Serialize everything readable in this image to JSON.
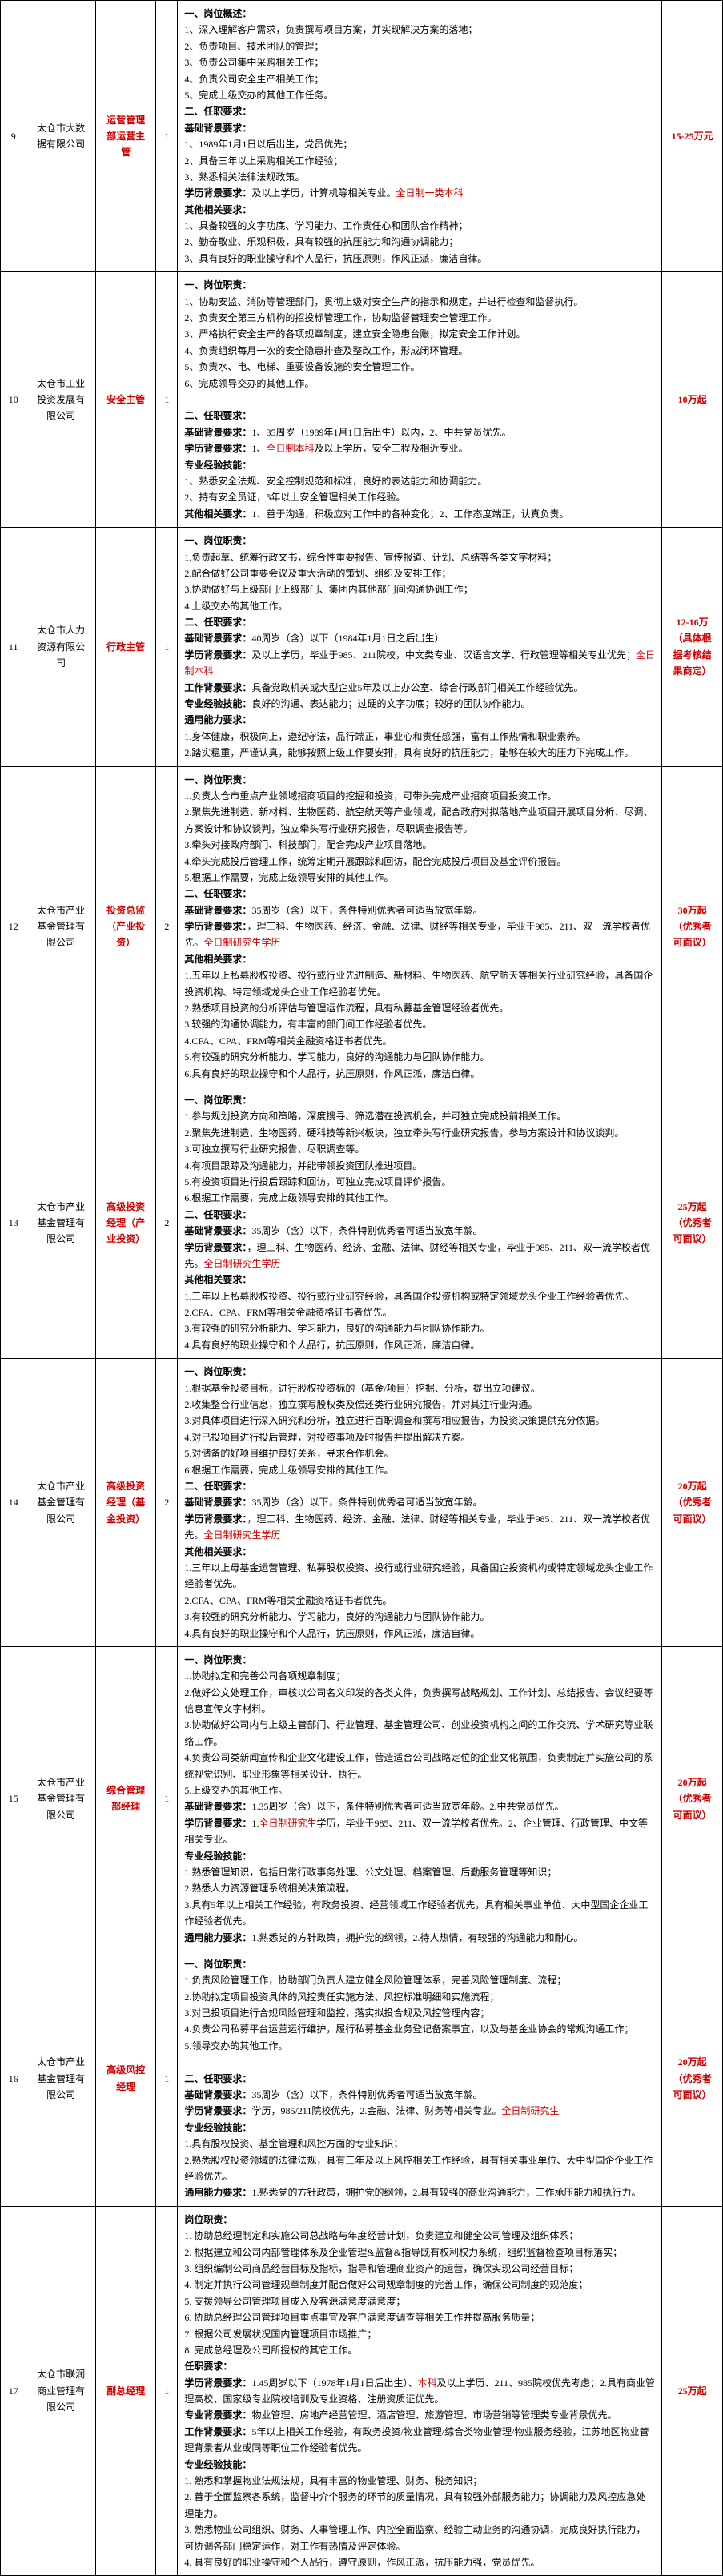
{
  "rows": [
    {
      "idx": "9",
      "company": "太仓市大数据有限公司",
      "position": "运营管理部运营主管",
      "pos_red": true,
      "num": "1",
      "salary": "15-25万元",
      "desc": [
        {
          "t": "一、岗位概述：",
          "b": true
        },
        {
          "t": "1、深入理解客户需求，负责撰写项目方案，并实现解决方案的落地；"
        },
        {
          "t": "2、负责项目、技术团队的管理；"
        },
        {
          "t": "3、负责公司集中采购相关工作；"
        },
        {
          "t": "4、负责公司安全生产相关工作；"
        },
        {
          "t": "5、完成上级交办的其他工作任务。"
        },
        {
          "t": "二、任职要求：",
          "b": true
        },
        {
          "t": "基础背景要求：",
          "b": true
        },
        {
          "t": "1、1989年1月1日以后出生，党员优先；"
        },
        {
          "t": "2、具备三年以上采购相关工作经验；"
        },
        {
          "t": "3、熟悉相关法律法规政策。"
        },
        {
          "t": "学历背景要求：",
          "b": true,
          "after": "全日制一类本科",
          "after_red": true,
          "tail": "及以上学历，计算机等相关专业。"
        },
        {
          "t": "其他相关要求：",
          "b": true
        },
        {
          "t": "1、具备较强的文字功底、学习能力、工作责任心和团队合作精神；"
        },
        {
          "t": "2、勤奋敬业、乐观积极，具有较强的抗压能力和沟通协调能力；"
        },
        {
          "t": "3、具有良好的职业操守和个人品行，抗压原则，作风正派，廉洁自律。"
        }
      ]
    },
    {
      "idx": "10",
      "company": "太仓市工业投资发展有限公司",
      "position": "安全主管",
      "pos_red": true,
      "num": "1",
      "salary": "10万起",
      "desc": [
        {
          "t": "一、岗位职责：",
          "b": true
        },
        {
          "t": "1、协助安监、消防等管理部门，贯彻上级对安全生产的指示和规定，并进行检查和监督执行。"
        },
        {
          "t": "2、负责安全第三方机构的招投标管理工作，协助监督管理安全管理工作。"
        },
        {
          "t": "3、严格执行安全生产的各项规章制度，建立安全隐患台账，拟定安全工作计划。"
        },
        {
          "t": "4、负责组织每月一次的安全隐患排查及整改工作，形成闭环管理。"
        },
        {
          "t": "5、负责水、电、电梯、重要设备设施的安全管理工作。"
        },
        {
          "t": "6、完成领导交办的其他工作。"
        },
        {
          "t": ""
        },
        {
          "t": "二、任职要求：",
          "b": true
        },
        {
          "t": "基础背景要求：",
          "b": true,
          "tail": "1、35周岁（1989年1月1日后出生）以内，2、中共党员优先。"
        },
        {
          "t": "学历背景要求：",
          "b": true,
          "tail": "1、",
          "after": "全日制本科",
          "after_red": true,
          "tail2": "及以上学历，安全工程及相近专业。"
        },
        {
          "t": "专业经验技能：",
          "b": true
        },
        {
          "t": "1、熟悉安全法规、安全控制规范和标准，良好的表达能力和协调能力。"
        },
        {
          "t": "2、持有安全员证，5年以上安全管理相关工作经验。"
        },
        {
          "t": "其他相关要求：",
          "b": true,
          "tail": "1、善于沟通，积极应对工作中的各种变化；2、工作态度端正，认真负责。"
        }
      ]
    },
    {
      "idx": "11",
      "company": "太仓市人力资源有限公司",
      "position": "行政主管",
      "pos_red": true,
      "num": "1",
      "salary": "12-16万（具体根据考核结果商定）",
      "desc": [
        {
          "t": "一、岗位职责：",
          "b": true
        },
        {
          "t": "1.负责起草、统筹行政文书，综合性重要报告、宣传报道、计划、总结等各类文字材料；"
        },
        {
          "t": "2.配合做好公司重要会议及重大活动的策划、组织及安排工作；"
        },
        {
          "t": "3.协助做好与上级部门/上级部门、集团内其他部门间沟通协调工作；"
        },
        {
          "t": "4.上级交办的其他工作。"
        },
        {
          "t": "二、任职要求：",
          "b": true
        },
        {
          "t": "基础背景要求：",
          "b": true,
          "tail": "40周岁（含）以下（1984年1月1日之后出生）"
        },
        {
          "t": "学历背景要求：",
          "b": true,
          "after": "全日制本科",
          "after_red": true,
          "tail": "及以上学历，毕业于985、211院校，中文类专业、汉语言文学、行政管理等相关专业优先；"
        },
        {
          "t": "工作背景要求：",
          "b": true,
          "tail": "具备党政机关或大型企业5年及以上办公室、综合行政部门相关工作经验优先。"
        },
        {
          "t": "专业经验技能：",
          "b": true,
          "tail": "良好的沟通、表达能力；过硬的文字功底；较好的团队协作能力。"
        },
        {
          "t": "通用能力要求：",
          "b": true
        },
        {
          "t": "1.身体健康，积极向上，遵纪守法，品行端正，事业心和责任感强，富有工作热情和职业素养。"
        },
        {
          "t": "2.踏实稳重，严谨认真，能够按照上级工作要安排，具有良好的抗压能力，能够在较大的压力下完成工作。"
        }
      ]
    },
    {
      "idx": "12",
      "company": "太仓市产业基金管理有限公司",
      "position": "投资总监（产业投资）",
      "pos_red": true,
      "num": "2",
      "salary": "30万起（优秀者可面议）",
      "desc": [
        {
          "t": "一、岗位职责：",
          "b": true
        },
        {
          "t": "1.负责太仓市重点产业领域招商项目的挖掘和投资，可带头完成产业招商项目投资工作。"
        },
        {
          "t": "2.聚焦先进制造、新材料、生物医药、航空航天等产业领域，配合政府对拟落地产业项目开展项目分析、尽调、方案设计和协议谈判，独立牵头写行业研究报告，尽职调查报告等。"
        },
        {
          "t": "3.牵头对接政府部门、科技部门，配合完成产业项目落地。"
        },
        {
          "t": "4.牵头完成投后管理工作，统筹定期开展跟踪和回访，配合完成投后项目及基金评价报告。"
        },
        {
          "t": "5.根据工作需要，完成上级领导安排的其他工作。"
        },
        {
          "t": "二、任职要求：",
          "b": true
        },
        {
          "t": "基础背景要求：",
          "b": true,
          "tail": "35周岁（含）以下，条件特别优秀者可适当放宽年龄。"
        },
        {
          "t": "学历背景要求：",
          "b": true,
          "after": "全日制研究生学历",
          "after_red": true,
          "tail": "，理工科、生物医药、经济、金融、法律、财经等相关专业，毕业于985、211、双一流学校者优先。"
        },
        {
          "t": "其他相关要求：",
          "b": true
        },
        {
          "t": "1.五年以上私募股权投资、投行或行业先进制造、新材料、生物医药、航空航天等相关行业研究经验，具备国企投资机构、特定领域龙头企业工作经验者优先。"
        },
        {
          "t": "2.熟悉项目投资的分析评估与管理运作流程，具有私募基金管理经验者优先。"
        },
        {
          "t": "3.较强的沟通协调能力，有丰富的部门间工作经验者优先。"
        },
        {
          "t": "4.CFA、CPA、FRM等相关金融资格证书者优先。"
        },
        {
          "t": "5.有较强的研究分析能力、学习能力，良好的沟通能力与团队协作能力。"
        },
        {
          "t": "6.具有良好的职业操守和个人品行，抗压原则，作风正派，廉洁自律。"
        }
      ]
    },
    {
      "idx": "13",
      "company": "太仓市产业基金管理有限公司",
      "position": "高级投资经理（产业投资）",
      "pos_red": true,
      "num": "2",
      "salary": "25万起（优秀者可面议）",
      "desc": [
        {
          "t": "一、岗位职责：",
          "b": true
        },
        {
          "t": "1.参与规划投资方向和策略，深度搜寻、筛选潜在投资机会，并可独立完成投前相关工作。"
        },
        {
          "t": "2.聚焦先进制造、生物医药、硬科技等新兴板块，独立牵头写行业研究报告，参与方案设计和协议谈判。"
        },
        {
          "t": "3.可独立撰写行业研究报告、尽职调查等。"
        },
        {
          "t": "4.有项目跟踪及沟通能力，并能带领投资团队推进项目。"
        },
        {
          "t": "5.有投资项目进行投后跟踪和回访，可独立完成项目评价报告。"
        },
        {
          "t": "6.根据工作需要，完成上级领导安排的其他工作。"
        },
        {
          "t": "二、任职要求：",
          "b": true
        },
        {
          "t": "基础背景要求：",
          "b": true,
          "tail": "35周岁（含）以下，条件特别优秀者可适当放宽年龄。"
        },
        {
          "t": "学历背景要求：",
          "b": true,
          "after": "全日制研究生学历",
          "after_red": true,
          "tail": "，理工科、生物医药、经济、金融、法律、财经等相关专业，毕业于985、211、双一流学校者优先。"
        },
        {
          "t": "其他相关要求：",
          "b": true
        },
        {
          "t": "1.三年以上私募股权投资、投行或行业研究经验，具备国企投资机构或特定领域龙头企业工作经验者优先。"
        },
        {
          "t": "2.CFA、CPA、FRM等相关金融资格证书者优先。"
        },
        {
          "t": "3.有较强的研究分析能力、学习能力，良好的沟通能力与团队协作能力。"
        },
        {
          "t": "4.具有良好的职业操守和个人品行，抗压原则，作风正派，廉洁自律。"
        }
      ]
    },
    {
      "idx": "14",
      "company": "太仓市产业基金管理有限公司",
      "position": "高级投资经理（基金投资）",
      "pos_red": true,
      "num": "2",
      "salary": "20万起（优秀者可面议）",
      "desc": [
        {
          "t": "一、岗位职责：",
          "b": true
        },
        {
          "t": "1.根据基金投资目标，进行股权投资标的（基金/项目）挖掘、分析，提出立项建议。"
        },
        {
          "t": "2.收集整合行业信息，独立撰写股权类及偿还类行业研究报告，并对其注行业沟通。"
        },
        {
          "t": "3.对具体项目进行深入研究和分析，独立进行百职调查和撰写相应报告，为投资决策提供充分依据。"
        },
        {
          "t": "4.对已投项目进行投后管理，对投资事项及时报告并提出解决方案。"
        },
        {
          "t": "5.对储备的好项目维护良好关系，寻求合作机会。"
        },
        {
          "t": "6.根据工作需要，完成上级领导安排的其他工作。"
        },
        {
          "t": "二、任职要求：",
          "b": true
        },
        {
          "t": "基础背景要求：",
          "b": true,
          "tail": "35周岁（含）以下，条件特别优秀者可适当放宽年龄。"
        },
        {
          "t": "学历背景要求：",
          "b": true,
          "after": "全日制研究生学历",
          "after_red": true,
          "tail": "，理工科、生物医药、经济、金融、法律、财经等相关专业，毕业于985、211、双一流学校者优先。"
        },
        {
          "t": "其他相关要求：",
          "b": true
        },
        {
          "t": "1.三年以上母基金运营管理、私募股权投资、投行或行业研究经验，具备国企投资机构或特定领域龙头企业工作经验者优先。"
        },
        {
          "t": "2.CFA、CPA、FRM等相关金融资格证书者优先。"
        },
        {
          "t": "3.有较强的研究分析能力、学习能力，良好的沟通能力与团队协作能力。"
        },
        {
          "t": "4.具有良好的职业操守和个人品行，抗压原则，作风正派，廉洁自律。"
        }
      ]
    },
    {
      "idx": "15",
      "company": "太仓市产业基金管理有限公司",
      "position": "综合管理部经理",
      "pos_red": true,
      "num": "1",
      "salary": "20万起（优秀者可面议）",
      "desc": [
        {
          "t": "一、岗位职责：",
          "b": true
        },
        {
          "t": "1.协助拟定和完善公司各项规章制度；"
        },
        {
          "t": "2.做好公文处理工作，审核以公司名义印发的各类文件，负责撰写战略规划、工作计划、总结报告、会议纪要等信息宣传文字材料。"
        },
        {
          "t": "3.协助做好公司内与上级主管部门、行业管理、基金管理公司、创业投资机构之间的工作交流、学术研究等业联络工作。"
        },
        {
          "t": "4.负责公司类新闻宣传和企业文化建设工作，营造适合公司战略定位的企业文化氛围，负责制定并实施公司的系统视觉识别、职业形象等相关设计、执行。"
        },
        {
          "t": "5.上级交办的其他工作。"
        },
        {
          "t": "基础背景要求：",
          "b": true,
          "tail": "1.35周岁（含）以下，条件特别优秀者可适当放宽年龄。2.中共党员优先。"
        },
        {
          "t": "学历背景要求：",
          "b": true,
          "tail": "1.",
          "after": "全日制研究生",
          "after_red": true,
          "tail2": "学历，毕业于985、211、双一流学校者优先。2、企业管理、行政管理、中文等相关专业。"
        },
        {
          "t": "专业经验技能：",
          "b": true
        },
        {
          "t": "1.熟悉管理知识，包括日常行政事务处理、公文处理、档案管理、后勤服务管理等知识；"
        },
        {
          "t": "2.熟悉人力资源管理系统相关决策流程。"
        },
        {
          "t": "3.具有5年以上相关工作经验，有政务投资、经营领域工作经验者优先，具有相关事业单位、大中型国企企业工作经验者优先。"
        },
        {
          "t": "通用能力要求：",
          "b": true,
          "tail": "1.熟悉党的方针政策，拥护党的纲领，2.待人热情，有较强的沟通能力和耐心。"
        }
      ]
    },
    {
      "idx": "16",
      "company": "太仓市产业基金管理有限公司",
      "position": "高级风控经理",
      "pos_red": true,
      "num": "1",
      "salary": "20万起（优秀者可面议）",
      "desc": [
        {
          "t": "一、岗位职责：",
          "b": true
        },
        {
          "t": "1.负责风险管理工作，协助部门负责人建立健全风险管理体系，完善风险管理制度、流程；"
        },
        {
          "t": "2.协助拟定项目投资具体的风控责任实施方法、风控标准明细和实施流程；"
        },
        {
          "t": "3.对已投项目进行合规风险管理和监控，落实拟投合规及风控管理内容；"
        },
        {
          "t": "4.负责公司私募平台运营运行维护，履行私募基金业务登记备案事宜，以及与基金业协会的常规沟通工作；"
        },
        {
          "t": "5.领导交办的其他工作。"
        },
        {
          "t": ""
        },
        {
          "t": "二、任职要求：",
          "b": true
        },
        {
          "t": "基础背景要求：",
          "b": true,
          "tail": "35周岁（含）以下，条件特别优秀者可适当放宽年龄。"
        },
        {
          "t": "学历背景要求：",
          "b": true,
          "after": "全日制研究生",
          "after_red": true,
          "tail": "学历，985/211院校优先，2.金融、法律、财务等相关专业。"
        },
        {
          "t": "专业经验技能：",
          "b": true
        },
        {
          "t": "1.具有股权投资、基金管理和风控方面的专业知识；"
        },
        {
          "t": "2.熟悉股权投资领域的法律法规，具有三年及以上风控相关工作经验，具有相关事业单位、大中型国企企业工作经验优先。"
        },
        {
          "t": "通用能力要求：",
          "b": true,
          "tail": "1.熟悉党的方针政策，拥护党的纲领，2.具有较强的商业沟通能力，工作承压能力和执行力。"
        }
      ]
    },
    {
      "idx": "17",
      "company": "太仓市联润商业管理有限公司",
      "position": "副总经理",
      "pos_red": true,
      "num": "1",
      "salary": "25万起",
      "desc": [
        {
          "t": "岗位职责：",
          "b": true
        },
        {
          "t": "1. 协助总经理制定和实施公司总战略与年度经营计划，负责建立和健全公司管理及组织体系；"
        },
        {
          "t": "2. 根据建立和公司内部管理体系及企业管理&监督&指导既有权利权力系统，组织监督检查项目标落实；"
        },
        {
          "t": "3. 组织编制公司商品经营目标及指标，指导和管理商业资产的运营，确保实现公司经营目标；"
        },
        {
          "t": "4. 制定并执行公司管理规章制度并配合做好公司规章制度的完善工作，确保公司制度的规范度；"
        },
        {
          "t": "5. 支援领导公司管理项目成入及客源满意度满意度；"
        },
        {
          "t": "6. 协助总经理公司管理项目重点事宜及客户满意度调查等相关工作并提高服务质量；"
        },
        {
          "t": "7. 根据公司发展状况国内管理项目市场推广；"
        },
        {
          "t": "8. 完成总经理及公司所授权的其它工作。"
        },
        {
          "t": "任职要求：",
          "b": true
        },
        {
          "t": "学历背景要求：",
          "b": true,
          "tail": "1.45周岁以下（1978年1月1日后出生）、",
          "after": "本科",
          "after_red": true,
          "tail2": "及以上学历、211、985院校优先考虑；2.具有商业管理高校、国家级专业院校培训及专业资格、注册资质证优先。"
        },
        {
          "t": "专业背景要求：",
          "b": true,
          "tail": "物业管理、房地产经营管理、酒店管理、旅游管理、市场营销等管理类专业背景优先。"
        },
        {
          "t": "工作背景要求：",
          "b": true,
          "tail": "5年以上相关工作经验，有政务投资/物业管理/综合类物业管理/物业服务经验，江苏地区物业管理背景者从业或同等职位工作经验者优先。"
        },
        {
          "t": "专业经验技能：",
          "b": true
        },
        {
          "t": "1. 熟悉和掌握物业法规法规，具有丰富的物业管理、财务、税务知识；"
        },
        {
          "t": "2. 善于全面监察各系统，监督中介个服务的环节的质量情况，具有较强外部服务能力；协调能力及风控应急处理能力。"
        },
        {
          "t": "3. 熟悉物业公司组织、财务、人事管理工作、内控全面监察、经验主动业务的沟通协调，完成良好执行能力，可协调各部门稳定运作，对工作有热情及评定体验。"
        },
        {
          "t": "4. 具有良好的职业操守和个人品行，遵守原则，作风正派，抗压能力强，党员优先。"
        }
      ]
    }
  ]
}
